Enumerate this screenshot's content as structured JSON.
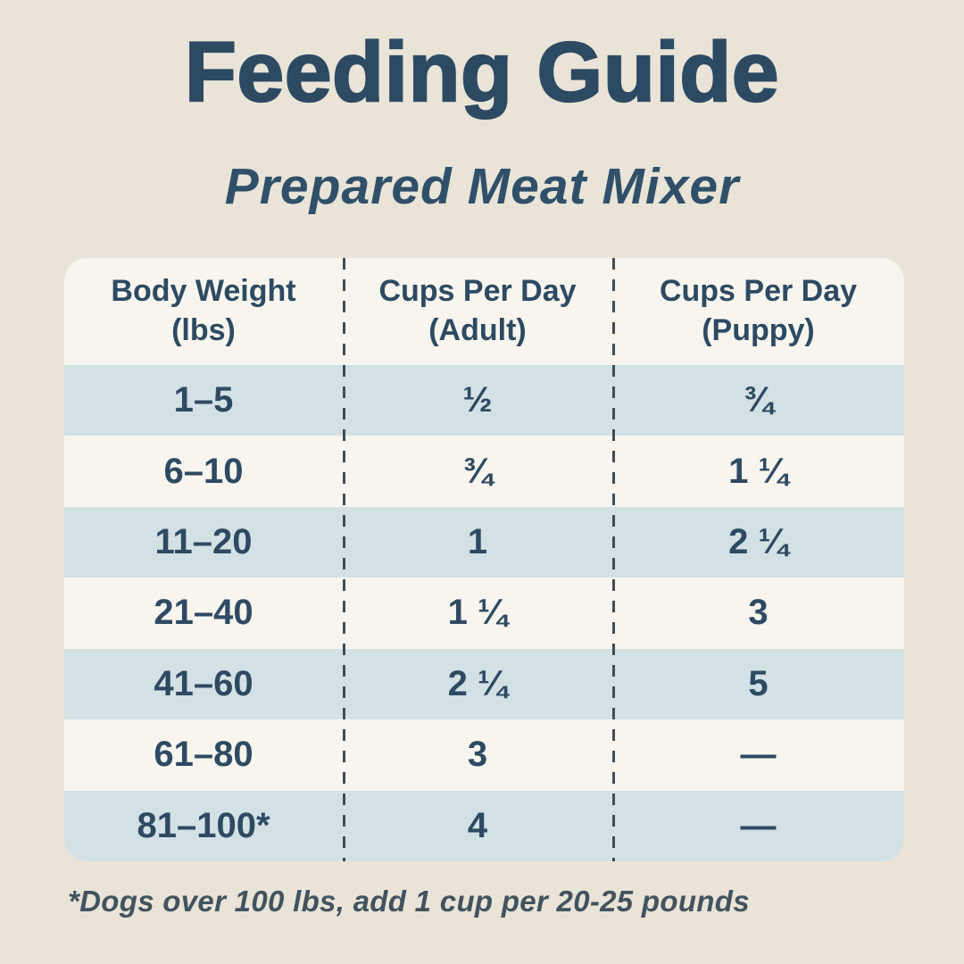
{
  "header": {
    "title": "Feeding Guide",
    "subtitle": "Prepared Meat Mixer"
  },
  "table": {
    "columns": [
      {
        "line1": "Body Weight",
        "line2": "(lbs)"
      },
      {
        "line1": "Cups Per Day",
        "line2": "(Adult)"
      },
      {
        "line1": "Cups Per Day",
        "line2": "(Puppy)"
      }
    ],
    "rows": [
      {
        "weight": "1–5",
        "adult": "½",
        "puppy": "¾"
      },
      {
        "weight": "6–10",
        "adult": "¾",
        "puppy": "1 ¼"
      },
      {
        "weight": "11–20",
        "adult": "1",
        "puppy": "2 ¼"
      },
      {
        "weight": "21–40",
        "adult": "1 ¼",
        "puppy": "3"
      },
      {
        "weight": "41–60",
        "adult": "2 ¼",
        "puppy": "5"
      },
      {
        "weight": "61–80",
        "adult": "3",
        "puppy": "—"
      },
      {
        "weight": "81–100*",
        "adult": "4",
        "puppy": "—"
      }
    ]
  },
  "footnote": "*Dogs over 100 lbs, add 1 cup per 20-25 pounds",
  "colors": {
    "background": "#e9e4d7",
    "card": "#f7f5ed",
    "row_alt": "#d3e1e5",
    "text_navy": "#2d4a63",
    "divider_dash": "#3e4d57",
    "footnote_text": "#42535f"
  },
  "chart_data": {
    "type": "table",
    "title": "Feeding Guide",
    "subtitle": "Prepared Meat Mixer",
    "columns": [
      "Body Weight (lbs)",
      "Cups Per Day (Adult)",
      "Cups Per Day (Puppy)"
    ],
    "rows": [
      [
        "1–5",
        "½",
        "¾"
      ],
      [
        "6–10",
        "¾",
        "1 ¼"
      ],
      [
        "11–20",
        "1",
        "2 ¼"
      ],
      [
        "21–40",
        "1 ¼",
        "3"
      ],
      [
        "41–60",
        "2 ¼",
        "5"
      ],
      [
        "61–80",
        "3",
        "—"
      ],
      [
        "81–100*",
        "4",
        "—"
      ]
    ],
    "footnote": "*Dogs over 100 lbs, add 1 cup per 20-25 pounds",
    "layout": {
      "alternating_row_shading": true,
      "column_dividers": "dashed",
      "grid": "off"
    }
  }
}
